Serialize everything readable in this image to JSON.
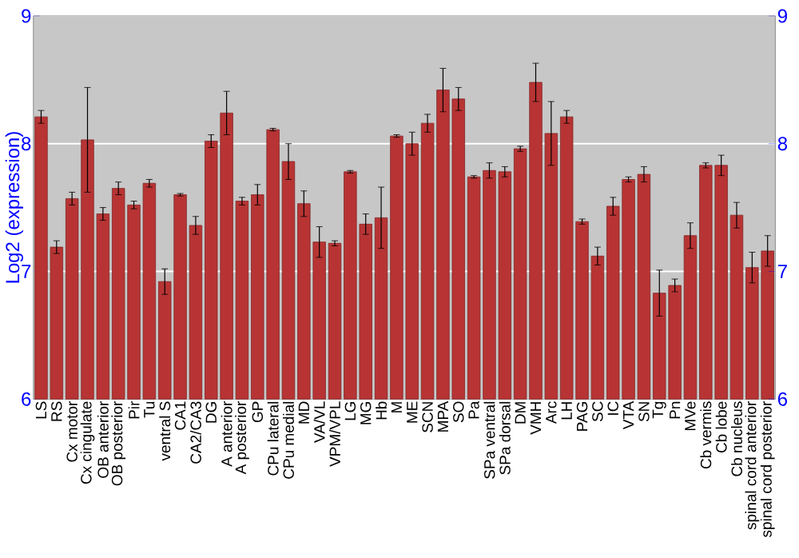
{
  "chart_data": {
    "type": "bar",
    "ylabel": "Log2 (expression)",
    "categories": [
      "LS",
      "RS",
      "Cx motor",
      "Cx cingulate",
      "OB anterior",
      "OB posterior",
      "Pir",
      "Tu",
      "ventral S",
      "CA1",
      "CA2/CA3",
      "DG",
      "A anterior",
      "A posterior",
      "GP",
      "CPu lateral",
      "CPu medial",
      "MD",
      "VA/VL",
      "VPM/VPL",
      "LG",
      "MG",
      "Hb",
      "M",
      "ME",
      "SCN",
      "MPA",
      "SO",
      "Pa",
      "SPa ventral",
      "SPa dorsal",
      "DM",
      "VMH",
      "Arc",
      "LH",
      "PAG",
      "SC",
      "IC",
      "VTA",
      "SN",
      "Tg",
      "Pn",
      "MVe",
      "Cb vermis",
      "Cb lobe",
      "Cb nucleus",
      "spinal cord anterior",
      "spinal cord posterior"
    ],
    "values": [
      8.21,
      7.19,
      7.57,
      8.03,
      7.45,
      7.65,
      7.52,
      7.69,
      6.92,
      7.6,
      7.36,
      8.02,
      8.24,
      7.55,
      7.6,
      8.11,
      7.86,
      7.53,
      7.23,
      7.22,
      7.78,
      7.37,
      7.42,
      8.06,
      8.0,
      8.16,
      8.42,
      8.35,
      7.74,
      7.79,
      7.78,
      7.96,
      8.48,
      8.08,
      8.21,
      7.39,
      7.12,
      7.51,
      7.72,
      7.76,
      6.83,
      6.89,
      7.28,
      7.83,
      7.83,
      7.44,
      7.03,
      7.16
    ],
    "errors": [
      0.05,
      0.05,
      0.05,
      0.41,
      0.05,
      0.05,
      0.03,
      0.03,
      0.1,
      0.01,
      0.07,
      0.05,
      0.17,
      0.03,
      0.08,
      0.01,
      0.14,
      0.1,
      0.12,
      0.02,
      0.01,
      0.08,
      0.24,
      0.01,
      0.09,
      0.07,
      0.17,
      0.09,
      0.01,
      0.06,
      0.04,
      0.02,
      0.15,
      0.25,
      0.05,
      0.02,
      0.07,
      0.07,
      0.02,
      0.06,
      0.18,
      0.05,
      0.1,
      0.02,
      0.08,
      0.1,
      0.12,
      0.12
    ],
    "color": "#b83434",
    "ylim": [
      6,
      9
    ],
    "yticks": [
      6,
      7,
      8,
      9
    ],
    "y2lim": [
      6,
      9
    ],
    "y2ticks": [
      6,
      7,
      8,
      9
    ],
    "grid": "y"
  }
}
